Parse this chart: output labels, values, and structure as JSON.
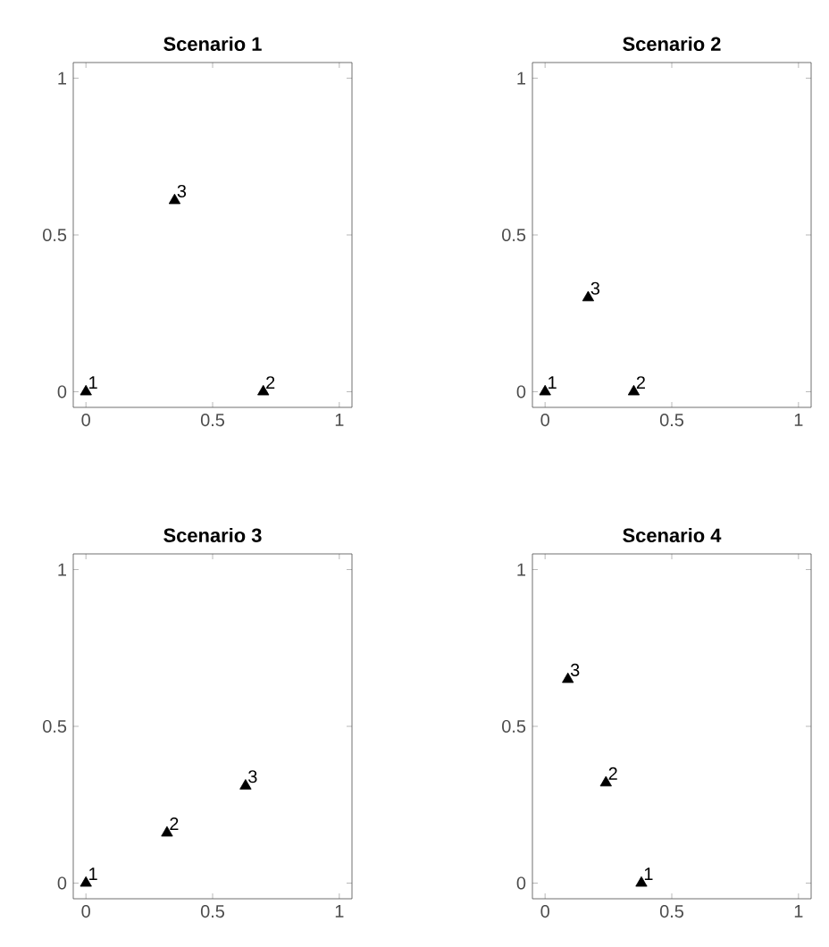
{
  "chart_data": [
    {
      "type": "scatter",
      "title": "Scenario 1",
      "x": [
        0,
        0.7,
        0.35
      ],
      "values": [
        0,
        0,
        0.61
      ],
      "color": "#000000",
      "marker": "triangle",
      "xlim": [
        -0.05,
        1.05
      ],
      "ylim": [
        -0.05,
        1.05
      ],
      "xticks": [
        0,
        0.5,
        1
      ],
      "yticks": [
        0,
        0.5,
        1
      ],
      "annotations": [
        {
          "text": "1",
          "x": 0,
          "y": 0
        },
        {
          "text": "2",
          "x": 0.7,
          "y": 0
        },
        {
          "text": "3",
          "x": 0.35,
          "y": 0.61
        }
      ]
    },
    {
      "type": "scatter",
      "title": "Scenario 2",
      "x": [
        0,
        0.35,
        0.17
      ],
      "values": [
        0,
        0,
        0.3
      ],
      "color": "#000000",
      "marker": "triangle",
      "xlim": [
        -0.05,
        1.05
      ],
      "ylim": [
        -0.05,
        1.05
      ],
      "xticks": [
        0,
        0.5,
        1
      ],
      "yticks": [
        0,
        0.5,
        1
      ],
      "annotations": [
        {
          "text": "1",
          "x": 0,
          "y": 0
        },
        {
          "text": "2",
          "x": 0.35,
          "y": 0
        },
        {
          "text": "3",
          "x": 0.17,
          "y": 0.3
        }
      ]
    },
    {
      "type": "scatter",
      "title": "Scenario 3",
      "x": [
        0,
        0.32,
        0.63
      ],
      "values": [
        0,
        0.16,
        0.31
      ],
      "color": "#000000",
      "marker": "triangle",
      "xlim": [
        -0.05,
        1.05
      ],
      "ylim": [
        -0.05,
        1.05
      ],
      "xticks": [
        0,
        0.5,
        1
      ],
      "yticks": [
        0,
        0.5,
        1
      ],
      "annotations": [
        {
          "text": "1",
          "x": 0,
          "y": 0
        },
        {
          "text": "2",
          "x": 0.32,
          "y": 0.16
        },
        {
          "text": "3",
          "x": 0.63,
          "y": 0.31
        }
      ]
    },
    {
      "type": "scatter",
      "title": "Scenario 4",
      "x": [
        0.38,
        0.24,
        0.09
      ],
      "values": [
        0,
        0.32,
        0.65
      ],
      "color": "#000000",
      "marker": "triangle",
      "xlim": [
        -0.05,
        1.05
      ],
      "ylim": [
        -0.05,
        1.05
      ],
      "xticks": [
        0,
        0.5,
        1
      ],
      "yticks": [
        0,
        0.5,
        1
      ],
      "annotations": [
        {
          "text": "1",
          "x": 0.38,
          "y": 0
        },
        {
          "text": "2",
          "x": 0.24,
          "y": 0.32
        },
        {
          "text": "3",
          "x": 0.09,
          "y": 0.65
        }
      ]
    }
  ]
}
